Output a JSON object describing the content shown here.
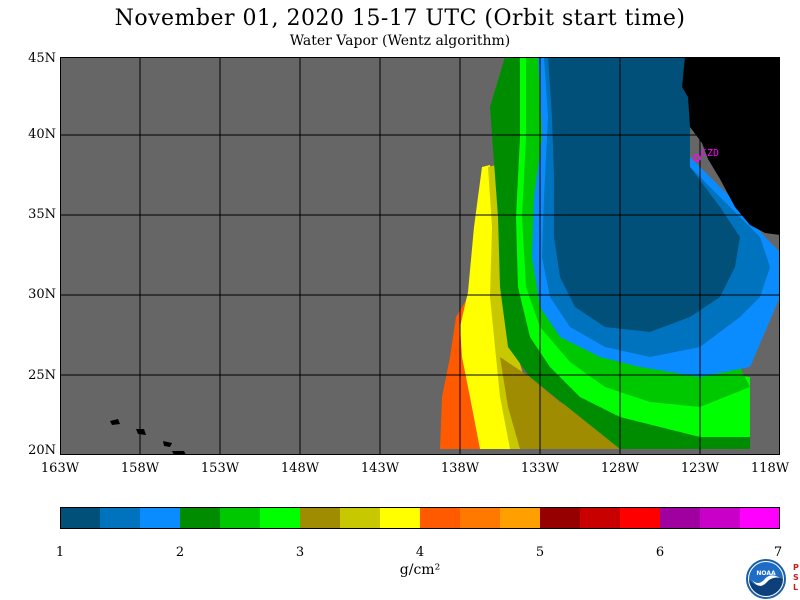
{
  "title": "November 01, 2020  15-17 UTC  (Orbit start time)",
  "subtitle": "Water Vapor (Wentz algorithm)",
  "map": {
    "lat_labels": [
      "45N",
      "40N",
      "35N",
      "30N",
      "25N",
      "20N"
    ],
    "lon_labels": [
      "163W",
      "158W",
      "153W",
      "148W",
      "143W",
      "138W",
      "133W",
      "128W",
      "123W",
      "118W"
    ],
    "station_label": "CZD",
    "background_color": "#666666",
    "land_color": "#000000",
    "grid_color": "#000000",
    "station_color": "#ff00ff"
  },
  "colorbar": {
    "tick_labels": [
      "1",
      "2",
      "3",
      "4",
      "5",
      "6",
      "7"
    ],
    "units": "g/cm²",
    "colors": [
      "#00507a",
      "#0073bf",
      "#0a8cff",
      "#008c00",
      "#00c800",
      "#00ff00",
      "#a08c00",
      "#c8c800",
      "#ffff00",
      "#ff5a00",
      "#ff7800",
      "#ffa000",
      "#960000",
      "#c80000",
      "#ff0000",
      "#a000a0",
      "#c800c8",
      "#ff00ff"
    ]
  },
  "logo": {
    "text": "NOAA",
    "side_text": "PSL"
  }
}
